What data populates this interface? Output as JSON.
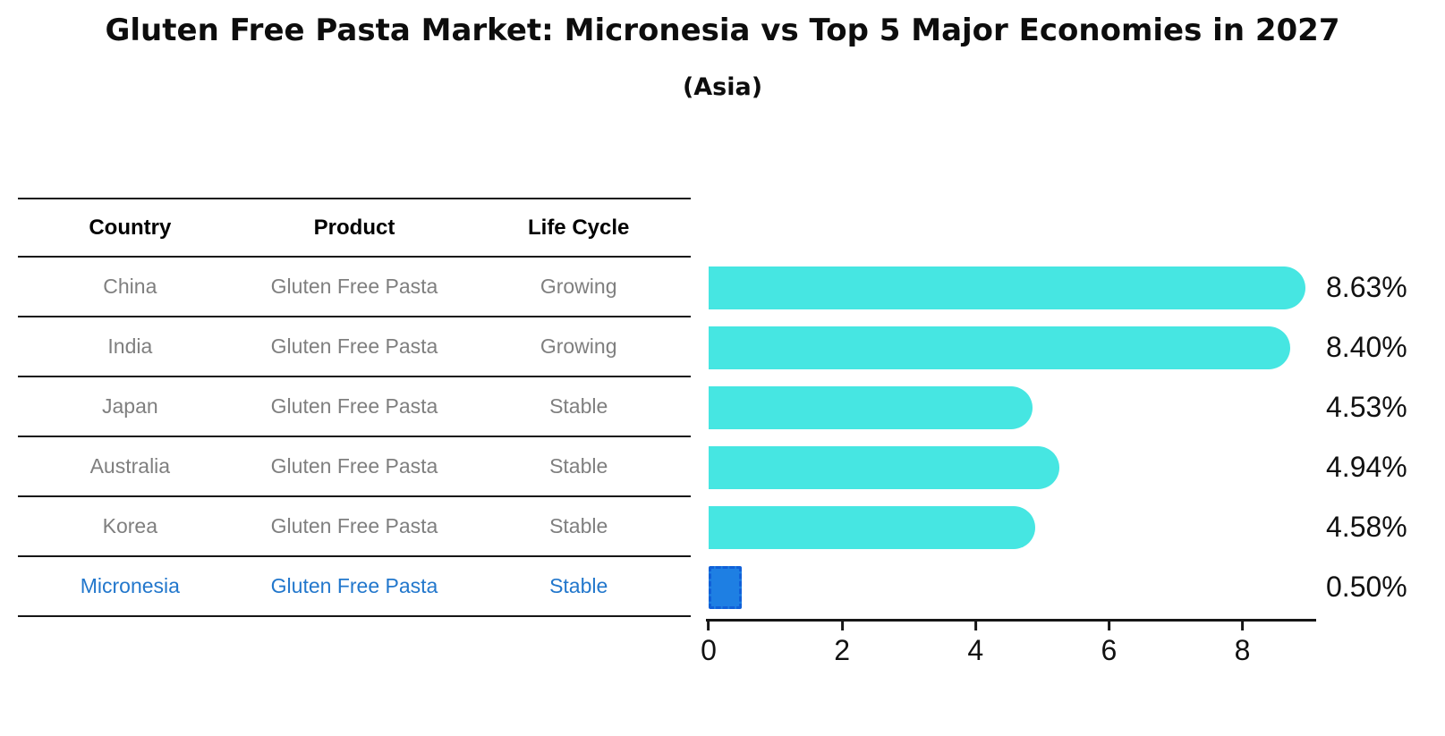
{
  "title": "Gluten Free Pasta Market: Micronesia vs Top 5 Major Economies in 2027",
  "subtitle": "(Asia)",
  "table": {
    "headers": [
      "Country",
      "Product",
      "Life Cycle"
    ],
    "rows": [
      {
        "country": "China",
        "product": "Gluten Free Pasta",
        "life_cycle": "Growing"
      },
      {
        "country": "India",
        "product": "Gluten Free Pasta",
        "life_cycle": "Growing"
      },
      {
        "country": "Japan",
        "product": "Gluten Free Pasta",
        "life_cycle": "Stable"
      },
      {
        "country": "Australia",
        "product": "Gluten Free Pasta",
        "life_cycle": "Stable"
      },
      {
        "country": "Korea",
        "product": "Gluten Free Pasta",
        "life_cycle": "Stable"
      },
      {
        "country": "Micronesia",
        "product": "Gluten Free Pasta",
        "life_cycle": "Stable"
      }
    ],
    "highlighted_row": "Micronesia"
  },
  "chart_data": {
    "type": "bar",
    "orientation": "horizontal",
    "title": "Gluten Free Pasta Market: Micronesia vs Top 5 Major Economies in 2027",
    "subtitle": "(Asia)",
    "categories": [
      "China",
      "India",
      "Japan",
      "Australia",
      "Korea",
      "Micronesia"
    ],
    "values": [
      8.63,
      8.4,
      4.53,
      4.94,
      4.58,
      0.5
    ],
    "value_labels": [
      "8.63%",
      "8.40%",
      "4.53%",
      "4.94%",
      "4.58%",
      "0.50%"
    ],
    "xlim": [
      0,
      9.08
    ],
    "x_ticks": [
      0,
      2,
      4,
      6,
      8
    ],
    "x_tick_labels": [
      "0",
      "2",
      "4",
      "6",
      "8"
    ],
    "grid": false,
    "legend": false,
    "highlight_index": 5,
    "bar_color": "#46E6E2",
    "highlight_bar_color": "#1E7FE3",
    "highlight_border_color": "#1060D8"
  },
  "colors": {
    "background": "#FFFFFF",
    "title_text": "#0D0D0D",
    "table_text": "#7F7F7F",
    "table_header_text": "#000000",
    "highlight_text": "#2277CC",
    "axis": "#161616"
  }
}
